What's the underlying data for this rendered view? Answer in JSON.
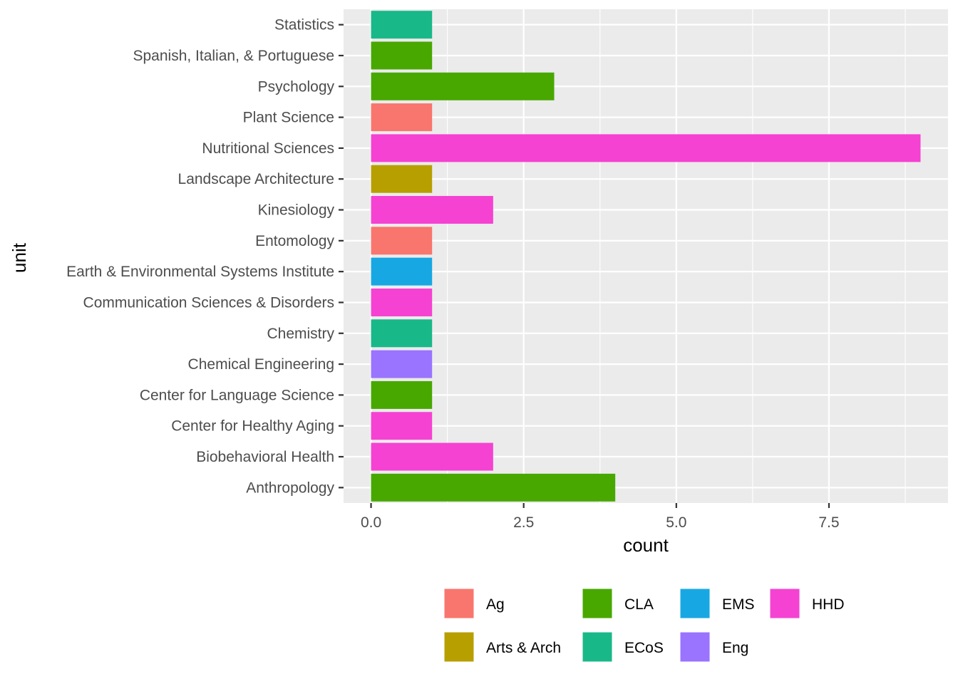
{
  "chart_data": {
    "type": "bar",
    "orientation": "horizontal",
    "title": "",
    "xlabel": "count",
    "ylabel": "unit",
    "xlim": [
      -0.45,
      9.45
    ],
    "x_ticks": [
      0.0,
      2.5,
      5.0,
      7.5
    ],
    "x_tick_labels": [
      "0.0",
      "2.5",
      "5.0",
      "7.5"
    ],
    "grid": true,
    "legend_position": "bottom",
    "categories": [
      "Anthropology",
      "Biobehavioral Health",
      "Center for Healthy Aging",
      "Center for Language Science",
      "Chemical Engineering",
      "Chemistry",
      "Communication Sciences & Disorders",
      "Earth & Environmental Systems Institute",
      "Entomology",
      "Kinesiology",
      "Landscape Architecture",
      "Nutritional Sciences",
      "Plant Science",
      "Psychology",
      "Spanish, Italian, & Portuguese",
      "Statistics"
    ],
    "values": [
      4,
      2,
      1,
      1,
      1,
      1,
      1,
      1,
      1,
      2,
      1,
      9,
      1,
      3,
      1,
      1
    ],
    "groups": [
      "CLA",
      "HHD",
      "HHD",
      "CLA",
      "Eng",
      "ECoS",
      "HHD",
      "EMS",
      "Ag",
      "HHD",
      "Arts & Arch",
      "HHD",
      "Ag",
      "CLA",
      "CLA",
      "ECoS"
    ],
    "legend": [
      {
        "name": "Ag",
        "color": "#F8766D"
      },
      {
        "name": "Arts & Arch",
        "color": "#B79F00"
      },
      {
        "name": "CLA",
        "color": "#48A800"
      },
      {
        "name": "ECoS",
        "color": "#19B888"
      },
      {
        "name": "EMS",
        "color": "#17A8E3"
      },
      {
        "name": "Eng",
        "color": "#9A73FF"
      },
      {
        "name": "HHD",
        "color": "#F542D2"
      }
    ]
  }
}
